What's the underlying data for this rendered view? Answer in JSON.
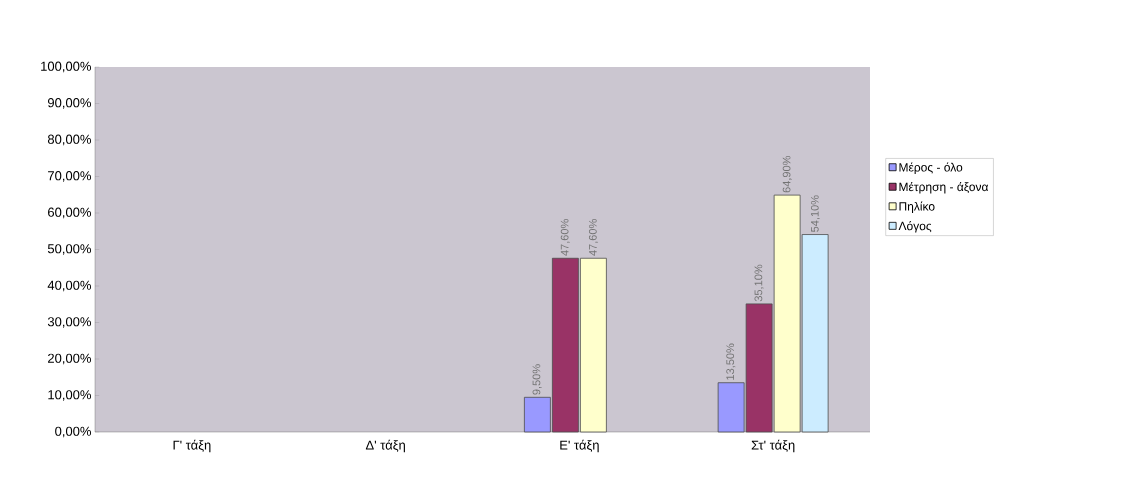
{
  "chart_data": {
    "type": "bar",
    "categories": [
      "Γ' τάξη",
      "Δ' τάξη",
      "Ε' τάξη",
      "Στ' τάξη"
    ],
    "series": [
      {
        "name": "Μέρος - όλο",
        "color": "#9999ff",
        "values": [
          null,
          null,
          9.5,
          13.5
        ],
        "value_labels": [
          null,
          null,
          "9,50%",
          "13,50%"
        ]
      },
      {
        "name": "Μέτρηση - άξονα",
        "color": "#993366",
        "values": [
          null,
          null,
          47.6,
          35.1
        ],
        "value_labels": [
          null,
          null,
          "47,60%",
          "35,10%"
        ]
      },
      {
        "name": "Πηλίκο",
        "color": "#ffffcc",
        "values": [
          null,
          null,
          47.6,
          64.9
        ],
        "value_labels": [
          null,
          null,
          "47,60%",
          "64,90%"
        ]
      },
      {
        "name": "Λόγος",
        "color": "#ccecff",
        "values": [
          null,
          null,
          null,
          54.1
        ],
        "value_labels": [
          null,
          null,
          null,
          "54,10%"
        ]
      }
    ],
    "ylim": [
      0,
      100
    ],
    "yticks": [
      {
        "value": 0,
        "label": "0,00%"
      },
      {
        "value": 10,
        "label": "10,00%"
      },
      {
        "value": 20,
        "label": "20,00%"
      },
      {
        "value": 30,
        "label": "30,00%"
      },
      {
        "value": 40,
        "label": "40,00%"
      },
      {
        "value": 50,
        "label": "50,00%"
      },
      {
        "value": 60,
        "label": "60,00%"
      },
      {
        "value": 70,
        "label": "70,00%"
      },
      {
        "value": 80,
        "label": "80,00%"
      },
      {
        "value": 90,
        "label": "90,00%"
      },
      {
        "value": 100,
        "label": "100,00%"
      }
    ],
    "legend": "right",
    "grid": false
  }
}
